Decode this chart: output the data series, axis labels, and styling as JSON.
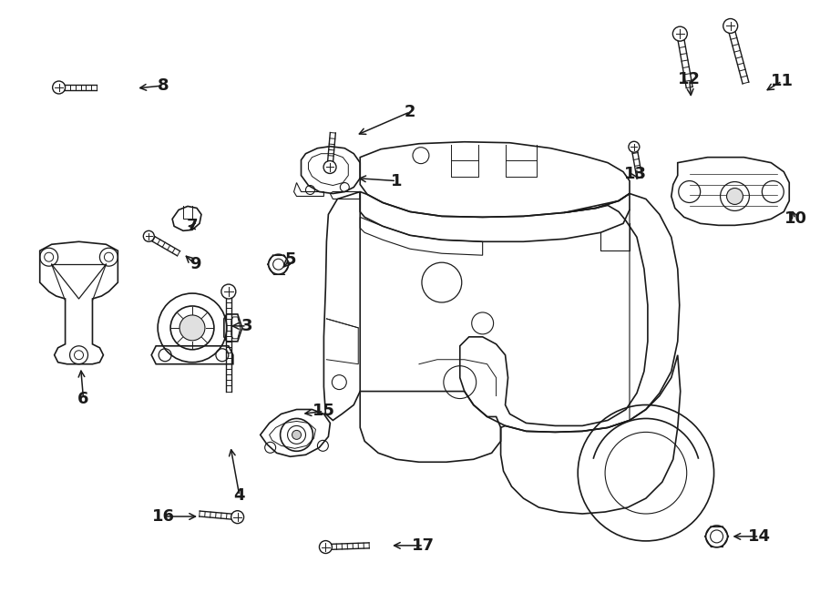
{
  "bg_color": "#ffffff",
  "line_color": "#1a1a1a",
  "fig_width": 9.0,
  "fig_height": 6.62,
  "dpi": 100,
  "lw": 1.0
}
